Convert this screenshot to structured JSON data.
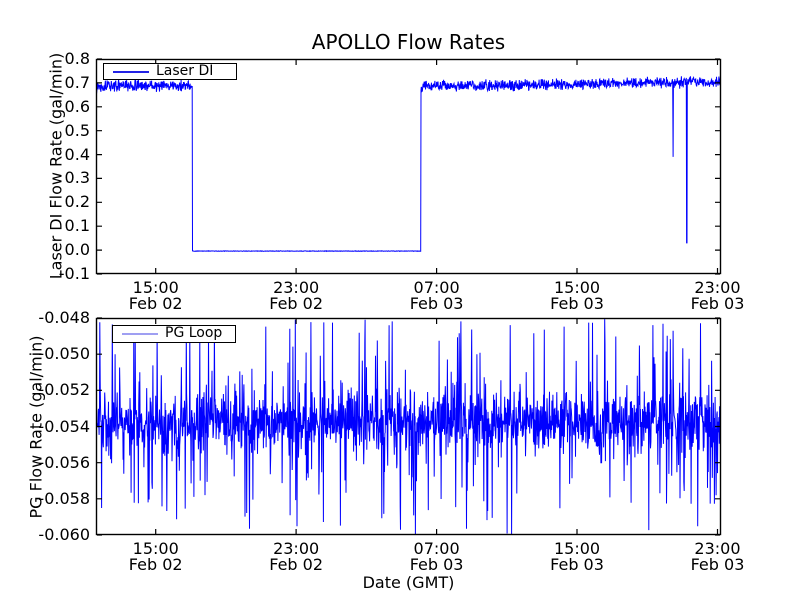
{
  "figure": {
    "title": "APOLLO Flow Rates",
    "background_color": "#ffffff",
    "axis_color": "#000000",
    "series_color": "#0000ff"
  },
  "chart_data": [
    {
      "type": "line",
      "id": "laser-di",
      "title": "APOLLO Flow Rates",
      "ylabel": "Laser DI Flow Rate (gal/min)",
      "legend": "Laser DI",
      "legend_position": "upper left",
      "color": "#0000ff",
      "legend_sample_color": "#2222e6",
      "grid": false,
      "ylim": [
        -0.1,
        0.8
      ],
      "yticks": [
        0.8,
        0.7,
        0.6,
        0.5,
        0.4,
        0.3,
        0.2,
        0.1,
        0.0,
        -0.1
      ],
      "ytick_decimals": 1,
      "x_unit": "hours since Feb 02 00:00 GMT",
      "xlim": [
        11.6,
        47.2
      ],
      "xticks": [
        {
          "t": 15,
          "time": "15:00",
          "date": "Feb 02"
        },
        {
          "t": 23,
          "time": "23:00",
          "date": "Feb 02"
        },
        {
          "t": 31,
          "time": "07:00",
          "date": "Feb 03"
        },
        {
          "t": 39,
          "time": "15:00",
          "date": "Feb 03"
        },
        {
          "t": 47,
          "time": "23:00",
          "date": "Feb 03"
        }
      ],
      "segments": [
        {
          "t_start": 11.6,
          "t_end": 17.08,
          "level": 0.688,
          "noise_halfwidth": 0.028,
          "description": "steady noisy flow ~0.69 gal/min"
        },
        {
          "t_start": 17.08,
          "t_end": 30.1,
          "level": -0.004,
          "noise_halfwidth": 0.0012,
          "description": "flow off, flat at ~0.0 gal/min"
        },
        {
          "t_start": 30.1,
          "t_end": 47.2,
          "level": 0.685,
          "level_end": 0.705,
          "noise_halfwidth": 0.028,
          "description": "steady noisy flow ~0.7 gal/min, slight upward drift"
        }
      ],
      "anomaly_dips": [
        {
          "t": 44.47,
          "value": 0.39
        },
        {
          "t": 45.24,
          "value": 0.03
        }
      ]
    },
    {
      "type": "line",
      "id": "pg-loop",
      "ylabel": "PG Flow Rate (gal/min)",
      "xlabel": "Date (GMT)",
      "legend": "PG Loop",
      "legend_position": "upper left",
      "color": "#0000ff",
      "legend_sample_color": "#9f9ff2",
      "grid": false,
      "ylim": [
        -0.06,
        -0.048
      ],
      "yticks": [
        -0.048,
        -0.05,
        -0.052,
        -0.054,
        -0.056,
        -0.058,
        -0.06
      ],
      "ytick_decimals": 3,
      "x_unit": "hours since Feb 02 00:00 GMT",
      "xlim": [
        11.6,
        47.2
      ],
      "xticks": [
        {
          "t": 15,
          "time": "15:00",
          "date": "Feb 02"
        },
        {
          "t": 23,
          "time": "23:00",
          "date": "Feb 02"
        },
        {
          "t": 31,
          "time": "07:00",
          "date": "Feb 03"
        },
        {
          "t": 39,
          "time": "15:00",
          "date": "Feb 03"
        },
        {
          "t": 47,
          "time": "23:00",
          "date": "Feb 03"
        }
      ],
      "band": {
        "center": -0.0538,
        "halfwidth": 0.0017,
        "spike_up_max": -0.048,
        "spike_down_min": -0.0602,
        "spike_probability": 0.07,
        "description": "dense high-frequency noise band between about -0.052 and -0.0555 gal/min with frequent short spikes up toward -0.048 and down toward -0.060"
      }
    }
  ]
}
